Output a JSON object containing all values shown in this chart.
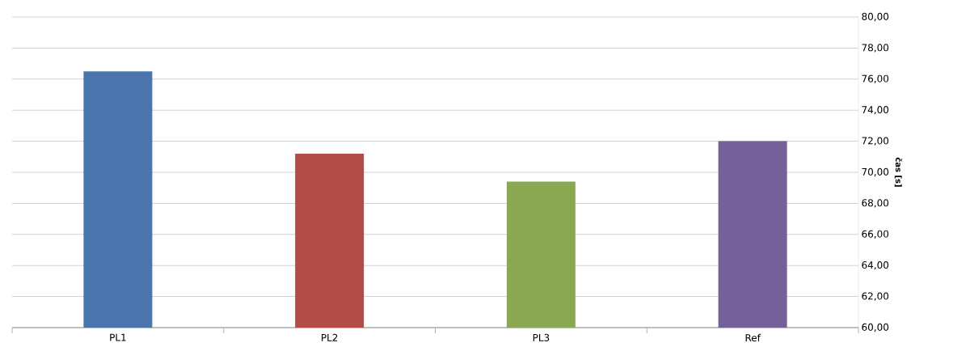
{
  "chart_data": {
    "type": "bar",
    "categories": [
      "PL1",
      "PL2",
      "PL3",
      "Ref"
    ],
    "values": [
      76.5,
      71.2,
      69.4,
      72.0
    ],
    "colors": [
      "#4a76ad",
      "#b34c49",
      "#8aa852",
      "#75609a"
    ],
    "ylabel": "čas [s]",
    "ylim": [
      60,
      80
    ],
    "yticks": [
      {
        "value": 60,
        "label": "60,00"
      },
      {
        "value": 62,
        "label": "62,00"
      },
      {
        "value": 64,
        "label": "64,00"
      },
      {
        "value": 66,
        "label": "66,00"
      },
      {
        "value": 68,
        "label": "68,00"
      },
      {
        "value": 70,
        "label": "70,00"
      },
      {
        "value": 72,
        "label": "72,00"
      },
      {
        "value": 74,
        "label": "74,00"
      },
      {
        "value": 76,
        "label": "76,00"
      },
      {
        "value": 78,
        "label": "78,00"
      },
      {
        "value": 80,
        "label": "80,00"
      }
    ],
    "grid": "y"
  }
}
